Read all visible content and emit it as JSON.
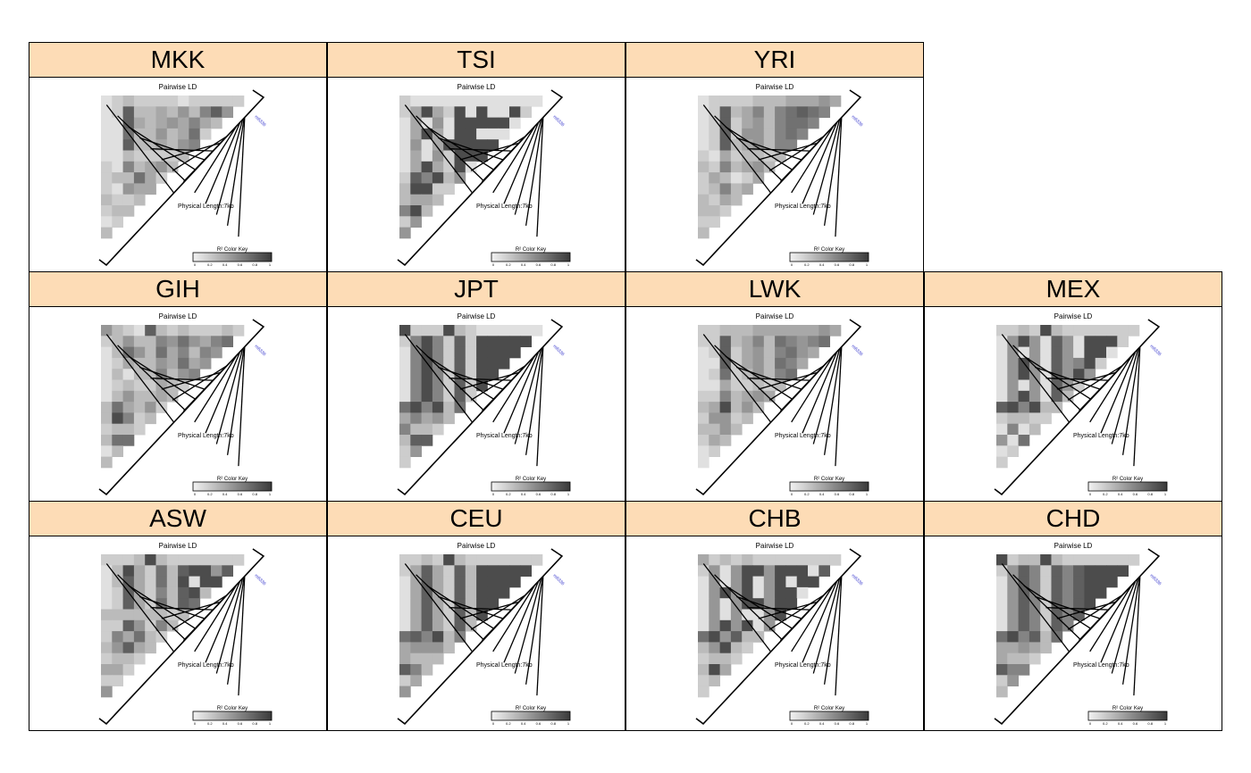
{
  "colors": {
    "strip_background": "#fddcb6",
    "highlight_snp_label": "#3333cc"
  },
  "chart_data": {
    "type": "heatmap",
    "subplot_title": "Pairwise LD",
    "physical_length_label": "Physical Length:7kb",
    "highlighted_snp": "rs6336",
    "color_key": {
      "title": "R² Color Key",
      "ticks": [
        "0",
        "0.2",
        "0.4",
        "0.6",
        "0.8",
        "1"
      ],
      "low_color": "#f2f2f2",
      "high_color": "#3a3a3a"
    },
    "populations": [
      "MKK",
      "TSI",
      "YRI",
      "GIH",
      "JPT",
      "LWK",
      "MEX",
      "ASW",
      "CEU",
      "CHB",
      "CHD"
    ],
    "matrices": {
      "MKK": [
        [
          0.1,
          0.2,
          0.3,
          0.2,
          0.2,
          0.2,
          0.2,
          0.1,
          0.2,
          0.2,
          0.2,
          0.2,
          0.2
        ],
        [
          0.1,
          0.2,
          0.8,
          0.3,
          0.3,
          0.4,
          0.3,
          0.5,
          0.3,
          0.6,
          0.8,
          0.5
        ],
        [
          0.1,
          0.1,
          0.8,
          0.4,
          0.3,
          0.4,
          0.5,
          0.4,
          0.6,
          0.4,
          0.3
        ],
        [
          0.1,
          0.1,
          0.7,
          0.3,
          0.3,
          0.5,
          0.3,
          0.4,
          0.7,
          0.2
        ],
        [
          0.1,
          0.1,
          0.8,
          0.3,
          0.3,
          0.4,
          0.3,
          0.5,
          0.6
        ],
        [
          0.1,
          0.1,
          0.3,
          0.2,
          0.2,
          0.2,
          0.2,
          0.3
        ],
        [
          0.2,
          0.1,
          0.6,
          0.3,
          0.4,
          0.5,
          0.3
        ],
        [
          0.2,
          0.3,
          0.3,
          0.7,
          0.4,
          0.2
        ],
        [
          0.2,
          0.1,
          0.5,
          0.4,
          0.4
        ],
        [
          0.3,
          0.2,
          0.2,
          0.3
        ],
        [
          0.2,
          0.3,
          0.3
        ],
        [
          0.1,
          0.2
        ],
        [
          0.3
        ]
      ],
      "TSI": [
        [
          0.2,
          0.1,
          0.1,
          0.1,
          0.1,
          0.1,
          0.1,
          0.1,
          0.1,
          0.1,
          0.1,
          0.1,
          0.1
        ],
        [
          0.2,
          0.4,
          0.9,
          0.4,
          0.2,
          0.9,
          0.1,
          0.9,
          0.1,
          0.1,
          0.9,
          0.2
        ],
        [
          0.1,
          0.4,
          0.1,
          0.5,
          0.1,
          0.9,
          0.9,
          0.9,
          0.9,
          0.9,
          0.1
        ],
        [
          0.1,
          0.4,
          0.9,
          0.4,
          0.1,
          0.9,
          0.9,
          0.1,
          0.1,
          0.1
        ],
        [
          0.1,
          0.5,
          0.1,
          0.4,
          0.9,
          0.9,
          0.9,
          0.9,
          0.9
        ],
        [
          0.1,
          0.4,
          0.1,
          0.5,
          0.2,
          0.9,
          0.9,
          0.9
        ],
        [
          0.1,
          0.4,
          0.9,
          0.4,
          0.2,
          0.9,
          0.1
        ],
        [
          0.2,
          0.8,
          0.6,
          0.9,
          0.3,
          0.5
        ],
        [
          0.3,
          0.9,
          0.9,
          0.2,
          0.2
        ],
        [
          0.3,
          0.4,
          0.4,
          0.3
        ],
        [
          0.6,
          0.9,
          0.3
        ],
        [
          0.2,
          0.5
        ],
        [
          0.5
        ]
      ],
      "YRI": [
        [
          0.1,
          0.2,
          0.2,
          0.2,
          0.2,
          0.3,
          0.3,
          0.3,
          0.4,
          0.4,
          0.4,
          0.5,
          0.4
        ],
        [
          0.1,
          0.2,
          0.8,
          0.3,
          0.4,
          0.6,
          0.3,
          0.6,
          0.7,
          0.8,
          0.7,
          0.6
        ],
        [
          0.1,
          0.2,
          0.8,
          0.2,
          0.4,
          0.5,
          0.3,
          0.6,
          0.7,
          0.7,
          0.6
        ],
        [
          0.1,
          0.2,
          0.8,
          0.2,
          0.5,
          0.5,
          0.3,
          0.6,
          0.7,
          0.6
        ],
        [
          0.1,
          0.2,
          0.8,
          0.3,
          0.4,
          0.5,
          0.3,
          0.6,
          0.6
        ],
        [
          0.2,
          0.1,
          0.4,
          0.2,
          0.3,
          0.3,
          0.2,
          0.3
        ],
        [
          0.3,
          0.2,
          0.6,
          0.3,
          0.4,
          0.5,
          0.3
        ],
        [
          0.2,
          0.4,
          0.3,
          0.1,
          0.2,
          0.4
        ],
        [
          0.2,
          0.3,
          0.6,
          0.3,
          0.4
        ],
        [
          0.3,
          0.2,
          0.4,
          0.3
        ],
        [
          0.3,
          0.3,
          0.2
        ],
        [
          0.2,
          0.2
        ],
        [
          0.3
        ]
      ],
      "GIH": [
        [
          0.5,
          0.3,
          0.2,
          0.1,
          0.8,
          0.3,
          0.2,
          0.3,
          0.2,
          0.2,
          0.2,
          0.3,
          0.2
        ],
        [
          0.2,
          0.3,
          0.5,
          0.3,
          0.3,
          0.6,
          0.5,
          0.7,
          0.5,
          0.4,
          0.6,
          0.7
        ],
        [
          0.1,
          0.3,
          0.7,
          0.5,
          0.3,
          0.7,
          0.4,
          0.6,
          0.3,
          0.6,
          0.5
        ],
        [
          0.1,
          0.2,
          0.4,
          0.3,
          0.3,
          0.5,
          0.4,
          0.7,
          0.4,
          0.5
        ],
        [
          0.1,
          0.3,
          0.1,
          0.3,
          0.3,
          0.6,
          0.3,
          0.5,
          0.6
        ],
        [
          0.1,
          0.2,
          0.3,
          0.2,
          0.2,
          0.4,
          0.3,
          0.2
        ],
        [
          0.1,
          0.3,
          0.5,
          0.3,
          0.3,
          0.4,
          0.3
        ],
        [
          0.3,
          0.7,
          0.4,
          0.3,
          0.5,
          0.2
        ],
        [
          0.3,
          0.9,
          0.6,
          0.2,
          0.3
        ],
        [
          0.2,
          0.3,
          0.3,
          0.2
        ],
        [
          0.3,
          0.7,
          0.7
        ],
        [
          0.1,
          0.3
        ],
        [
          0.3
        ]
      ],
      "JPT": [
        [
          0.9,
          0.2,
          0.2,
          0.2,
          0.9,
          0.3,
          0.2,
          0.1,
          0.1,
          0.1,
          0.1,
          0.1,
          0.1
        ],
        [
          0.2,
          0.6,
          0.9,
          0.6,
          0.2,
          0.8,
          0.2,
          0.9,
          0.9,
          0.9,
          0.9,
          0.9
        ],
        [
          0.1,
          0.6,
          0.9,
          0.6,
          0.2,
          0.8,
          0.2,
          0.9,
          0.9,
          0.9,
          0.9
        ],
        [
          0.1,
          0.6,
          0.9,
          0.6,
          0.2,
          0.8,
          0.2,
          0.9,
          0.9,
          0.9
        ],
        [
          0.1,
          0.6,
          0.9,
          0.6,
          0.2,
          0.8,
          0.2,
          0.9,
          0.9
        ],
        [
          0.1,
          0.6,
          0.9,
          0.6,
          0.2,
          0.8,
          0.2,
          0.9
        ],
        [
          0.1,
          0.6,
          0.9,
          0.6,
          0.2,
          0.8,
          0.2
        ],
        [
          0.7,
          0.9,
          0.6,
          0.9,
          0.3,
          0.7
        ],
        [
          0.4,
          0.6,
          0.4,
          0.5,
          0.3
        ],
        [
          0.6,
          0.3,
          0.3,
          0.2
        ],
        [
          0.3,
          0.8,
          0.8
        ],
        [
          0.2,
          0.5
        ],
        [
          0.2
        ]
      ],
      "LWK": [
        [
          0.2,
          0.2,
          0.3,
          0.3,
          0.3,
          0.4,
          0.4,
          0.4,
          0.4,
          0.4,
          0.4,
          0.5,
          0.4
        ],
        [
          0.2,
          0.2,
          0.8,
          0.3,
          0.4,
          0.6,
          0.3,
          0.7,
          0.6,
          0.5,
          0.6,
          0.7
        ],
        [
          0.1,
          0.2,
          0.8,
          0.2,
          0.4,
          0.5,
          0.3,
          0.6,
          0.7,
          0.5,
          0.4
        ],
        [
          0.1,
          0.1,
          0.8,
          0.2,
          0.4,
          0.5,
          0.3,
          0.7,
          0.6,
          0.4
        ],
        [
          0.1,
          0.2,
          0.7,
          0.2,
          0.3,
          0.5,
          0.3,
          0.6,
          0.7
        ],
        [
          0.1,
          0.1,
          0.4,
          0.2,
          0.2,
          0.3,
          0.2,
          0.3
        ],
        [
          0.2,
          0.2,
          0.6,
          0.3,
          0.4,
          0.5,
          0.4
        ],
        [
          0.3,
          0.4,
          0.9,
          0.3,
          0.5,
          0.3
        ],
        [
          0.2,
          0.5,
          0.5,
          0.2,
          0.3
        ],
        [
          0.3,
          0.3,
          0.5,
          0.3
        ],
        [
          0.2,
          0.4,
          0.3
        ],
        [
          0.1,
          0.2
        ],
        [
          0.1
        ]
      ],
      "MEX": [
        [
          0.2,
          0.2,
          0.3,
          0.2,
          0.9,
          0.3,
          0.2,
          0.2,
          0.2,
          0.2,
          0.2,
          0.2,
          0.2
        ],
        [
          0.1,
          0.5,
          0.9,
          0.5,
          0.1,
          0.8,
          0.5,
          0.1,
          0.9,
          0.9,
          0.9,
          0.2
        ],
        [
          0.1,
          0.5,
          0.1,
          0.5,
          0.1,
          0.8,
          0.5,
          0.1,
          0.9,
          0.9,
          0.1
        ],
        [
          0.1,
          0.5,
          0.9,
          0.5,
          0.1,
          0.8,
          0.5,
          0.6,
          0.9,
          0.2
        ],
        [
          0.1,
          0.5,
          0.9,
          0.5,
          0.1,
          0.8,
          0.5,
          0.9,
          0.5
        ],
        [
          0.1,
          0.5,
          0.1,
          0.5,
          0.1,
          0.8,
          0.5,
          0.2
        ],
        [
          0.1,
          0.5,
          0.9,
          0.5,
          0.1,
          0.8,
          0.3
        ],
        [
          0.8,
          0.9,
          0.6,
          0.9,
          0.3,
          0.3
        ],
        [
          0.2,
          0.3,
          0.3,
          0.2,
          0.2
        ],
        [
          0.1,
          0.6,
          0.1,
          0.3
        ],
        [
          0.5,
          0.1,
          0.7
        ],
        [
          0.1,
          0.2
        ],
        [
          0.2
        ]
      ],
      "ASW": [
        [
          0.2,
          0.2,
          0.2,
          0.3,
          0.9,
          0.3,
          0.2,
          0.2,
          0.2,
          0.2,
          0.2,
          0.2,
          0.2
        ],
        [
          0.1,
          0.3,
          0.9,
          0.4,
          0.2,
          0.7,
          0.3,
          0.8,
          0.9,
          0.9,
          0.5,
          0.8
        ],
        [
          0.1,
          0.3,
          0.8,
          0.4,
          0.2,
          0.7,
          0.3,
          0.9,
          0.1,
          0.9,
          0.9
        ],
        [
          0.1,
          0.2,
          0.8,
          0.4,
          0.2,
          0.6,
          0.3,
          0.8,
          0.9,
          0.3
        ],
        [
          0.1,
          0.2,
          0.8,
          0.4,
          0.2,
          0.7,
          0.3,
          0.8,
          0.7
        ],
        [
          0.3,
          0.3,
          0.3,
          0.3,
          0.3,
          0.3,
          0.2,
          0.3
        ],
        [
          0.2,
          0.2,
          0.8,
          0.5,
          0.2,
          0.6,
          0.3
        ],
        [
          0.2,
          0.6,
          0.4,
          0.7,
          0.3,
          0.2
        ],
        [
          0.3,
          0.5,
          0.8,
          0.4,
          0.3
        ],
        [
          0.2,
          0.3,
          0.3,
          0.2
        ],
        [
          0.4,
          0.4,
          0.2
        ],
        [
          0.2,
          0.2
        ],
        [
          0.5
        ]
      ],
      "CEU": [
        [
          0.2,
          0.2,
          0.3,
          0.2,
          0.9,
          0.3,
          0.2,
          0.2,
          0.2,
          0.2,
          0.2,
          0.2,
          0.2
        ],
        [
          0.2,
          0.4,
          0.8,
          0.4,
          0.2,
          0.8,
          0.3,
          0.9,
          0.9,
          0.9,
          0.9,
          0.9
        ],
        [
          0.1,
          0.4,
          0.8,
          0.4,
          0.2,
          0.8,
          0.3,
          0.9,
          0.9,
          0.9,
          0.9
        ],
        [
          0.1,
          0.4,
          0.8,
          0.4,
          0.2,
          0.8,
          0.3,
          0.9,
          0.9,
          0.9
        ],
        [
          0.1,
          0.4,
          0.8,
          0.4,
          0.2,
          0.8,
          0.3,
          0.9,
          0.9
        ],
        [
          0.1,
          0.4,
          0.8,
          0.4,
          0.2,
          0.8,
          0.3,
          0.9
        ],
        [
          0.1,
          0.4,
          0.8,
          0.4,
          0.2,
          0.8,
          0.3
        ],
        [
          0.7,
          0.8,
          0.6,
          0.9,
          0.3,
          0.6
        ],
        [
          0.4,
          0.5,
          0.5,
          0.5,
          0.3
        ],
        [
          0.4,
          0.3,
          0.3,
          0.3
        ],
        [
          0.8,
          0.6,
          0.3
        ],
        [
          0.2,
          0.4
        ],
        [
          0.5
        ]
      ],
      "CHB": [
        [
          0.4,
          0.2,
          0.3,
          0.2,
          0.3,
          0.2,
          0.2,
          0.2,
          0.2,
          0.2,
          0.2,
          0.2,
          0.2
        ],
        [
          0.2,
          0.5,
          0.1,
          0.5,
          0.9,
          0.9,
          0.5,
          0.9,
          0.9,
          0.9,
          0.1,
          0.8
        ],
        [
          0.1,
          0.5,
          0.1,
          0.5,
          0.9,
          0.1,
          0.5,
          0.9,
          0.1,
          0.9,
          0.9
        ],
        [
          0.1,
          0.5,
          0.9,
          0.5,
          0.9,
          0.1,
          0.5,
          0.9,
          0.9,
          0.1
        ],
        [
          0.1,
          0.5,
          0.1,
          0.5,
          0.9,
          0.9,
          0.5,
          0.9,
          0.9
        ],
        [
          0.1,
          0.5,
          0.1,
          0.5,
          0.1,
          0.1,
          0.5,
          0.9
        ],
        [
          0.1,
          0.5,
          0.9,
          0.5,
          0.9,
          0.1,
          0.5
        ],
        [
          0.7,
          0.9,
          0.5,
          0.8,
          0.3,
          0.3
        ],
        [
          0.3,
          0.5,
          0.9,
          0.3,
          0.2
        ],
        [
          0.2,
          0.3,
          0.3,
          0.2
        ],
        [
          0.3,
          0.9,
          0.4
        ],
        [
          0.2,
          0.3
        ],
        [
          0.2
        ]
      ],
      "CHD": [
        [
          0.9,
          0.2,
          0.3,
          0.3,
          0.9,
          0.3,
          0.2,
          0.2,
          0.2,
          0.2,
          0.2,
          0.2,
          0.2
        ],
        [
          0.2,
          0.5,
          0.8,
          0.6,
          0.2,
          0.8,
          0.6,
          0.8,
          0.9,
          0.9,
          0.9,
          0.9
        ],
        [
          0.1,
          0.5,
          0.8,
          0.6,
          0.2,
          0.8,
          0.6,
          0.8,
          0.9,
          0.9,
          0.9
        ],
        [
          0.1,
          0.5,
          0.8,
          0.6,
          0.2,
          0.8,
          0.6,
          0.8,
          0.9,
          0.9
        ],
        [
          0.1,
          0.5,
          0.8,
          0.6,
          0.2,
          0.8,
          0.6,
          0.8,
          0.9
        ],
        [
          0.1,
          0.5,
          0.8,
          0.6,
          0.2,
          0.8,
          0.6,
          0.8
        ],
        [
          0.1,
          0.5,
          0.8,
          0.6,
          0.2,
          0.8,
          0.6
        ],
        [
          0.7,
          0.9,
          0.6,
          0.8,
          0.3,
          0.7
        ],
        [
          0.4,
          0.4,
          0.5,
          0.4,
          0.3
        ],
        [
          0.4,
          0.3,
          0.3,
          0.2
        ],
        [
          0.8,
          0.6,
          0.6
        ],
        [
          0.2,
          0.5
        ],
        [
          0.3
        ]
      ]
    }
  }
}
